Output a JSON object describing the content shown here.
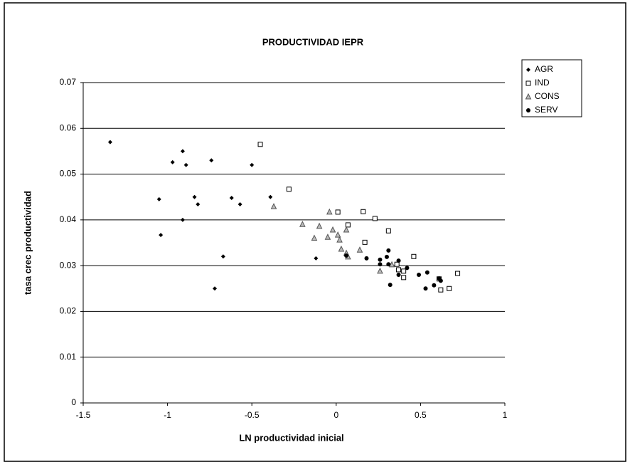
{
  "chart_data": {
    "type": "scatter",
    "title": "PRODUCTIVIDAD IEPR",
    "x_label": "LN productividad inicial",
    "y_label": "tasa crec productividad",
    "xlim": [
      -1.5,
      1
    ],
    "xticks": [
      -1.5,
      -1,
      -0.5,
      0,
      0.5,
      1
    ],
    "ylim": [
      0,
      0.07
    ],
    "yticks": [
      0,
      0.01,
      0.02,
      0.03,
      0.04,
      0.05,
      0.06,
      0.07
    ],
    "grid": true,
    "legend": "right",
    "series": [
      {
        "name": "AGR",
        "color": "#000000",
        "marker": "diamond",
        "x": [
          -1.34,
          -0.97,
          -0.91,
          -0.89,
          -1.05,
          -1.04,
          -0.91,
          -0.84,
          -0.82,
          -0.74,
          -0.72,
          -0.67,
          -0.62,
          -0.57,
          -0.5,
          -0.39,
          -0.12
        ],
        "values": [
          0.057,
          0.0526,
          0.055,
          0.052,
          0.0445,
          0.0367,
          0.04,
          0.045,
          0.0434,
          0.053,
          0.025,
          0.032,
          0.0448,
          0.0434,
          0.052,
          0.045,
          0.0316
        ]
      },
      {
        "name": "IND",
        "color": "#000000",
        "marker": "square",
        "x": [
          -0.45,
          -0.28,
          0.01,
          0.07,
          0.16,
          0.17,
          0.23,
          0.31,
          0.36,
          0.37,
          0.4,
          0.4,
          0.46,
          0.61,
          0.62,
          0.67,
          0.72
        ],
        "values": [
          0.0565,
          0.0467,
          0.0417,
          0.0389,
          0.0418,
          0.0351,
          0.0403,
          0.0376,
          0.0303,
          0.0291,
          0.0288,
          0.0274,
          0.032,
          0.0271,
          0.0247,
          0.025,
          0.0283
        ]
      },
      {
        "name": "CONS",
        "color": "#555555",
        "marker": "triangle",
        "x": [
          -0.37,
          -0.2,
          -0.13,
          -0.1,
          -0.04,
          -0.05,
          -0.02,
          0.01,
          0.02,
          0.03,
          0.06,
          0.06,
          0.07,
          0.14,
          0.26,
          0.33
        ],
        "values": [
          0.0429,
          0.039,
          0.036,
          0.0386,
          0.0417,
          0.0362,
          0.0378,
          0.0367,
          0.0356,
          0.0336,
          0.0327,
          0.0378,
          0.0319,
          0.0334,
          0.0288,
          0.0302
        ]
      },
      {
        "name": "SERV",
        "color": "#000000",
        "marker": "circle",
        "x": [
          0.06,
          0.18,
          0.26,
          0.26,
          0.3,
          0.31,
          0.31,
          0.32,
          0.37,
          0.37,
          0.42,
          0.49,
          0.53,
          0.54,
          0.58,
          0.61,
          0.62
        ],
        "values": [
          0.0322,
          0.0316,
          0.0313,
          0.0303,
          0.0319,
          0.0333,
          0.0303,
          0.0258,
          0.0311,
          0.028,
          0.0295,
          0.028,
          0.025,
          0.0285,
          0.0257,
          0.0272,
          0.0267
        ]
      }
    ]
  }
}
